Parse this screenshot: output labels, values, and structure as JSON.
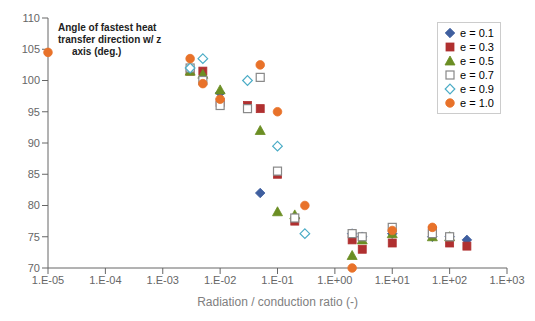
{
  "chart_data": {
    "type": "scatter",
    "title": "Angle of fastest heat\ntransfer direction w/ z\n     axis (deg.)",
    "x_label": "Radiation / conduction ratio (-)",
    "log": "x",
    "xlim": [
      1e-05,
      1000
    ],
    "xticks": [
      {
        "value": 1e-05,
        "label": "1.E-05"
      },
      {
        "value": 0.0001,
        "label": "1.E-04"
      },
      {
        "value": 0.001,
        "label": "1.E-03"
      },
      {
        "value": 0.01,
        "label": "1.E-02"
      },
      {
        "value": 0.1,
        "label": "1.E-01"
      },
      {
        "value": 1,
        "label": "1.E+00"
      },
      {
        "value": 10,
        "label": "1.E+01"
      },
      {
        "value": 100,
        "label": "1.E+02"
      },
      {
        "value": 1000,
        "label": "1.E+03"
      }
    ],
    "ylim": [
      70,
      110
    ],
    "yticks": [
      70,
      75,
      80,
      85,
      90,
      95,
      100,
      105,
      110
    ],
    "grid": false,
    "legend": "upper right",
    "series": [
      {
        "name": "e = 0.1",
        "color": "#3F5F9F",
        "marker": "diamond",
        "x": [
          0.01,
          0.05,
          0.2,
          2.0,
          3.0,
          10.0,
          50.0,
          100.0,
          200.0
        ],
        "values": [
          98.0,
          82.0,
          78.0,
          75.5,
          75.0,
          75.5,
          75.0,
          75.0,
          74.5
        ]
      },
      {
        "name": "e = 0.3",
        "color": "#B03030",
        "marker": "square",
        "x": [
          0.003,
          0.005,
          0.01,
          0.03,
          0.05,
          0.1,
          0.2,
          2.0,
          3.0,
          10.0,
          50.0,
          100.0,
          200.0
        ],
        "values": [
          101.5,
          101.5,
          96.5,
          96.0,
          95.5,
          85.0,
          77.5,
          74.5,
          73.0,
          74.0,
          76.0,
          74.0,
          73.5
        ]
      },
      {
        "name": "e = 0.5",
        "color": "#6B8E23",
        "marker": "triangle",
        "x": [
          0.003,
          0.005,
          0.01,
          0.05,
          0.1,
          0.2,
          2.0,
          3.0,
          10.0,
          50.0,
          100.0
        ],
        "values": [
          101.5,
          101.0,
          98.5,
          92.0,
          79.0,
          78.5,
          72.0,
          74.5,
          75.5,
          75.0,
          75.0
        ]
      },
      {
        "name": "e = 0.7",
        "color": "#888888",
        "marker": "square_open",
        "x": [
          0.003,
          0.005,
          0.01,
          0.03,
          0.05,
          0.1,
          0.2,
          2.0,
          3.0,
          10.0,
          50.0,
          100.0
        ],
        "values": [
          102.0,
          100.0,
          96.0,
          95.5,
          100.5,
          85.5,
          78.0,
          75.5,
          75.0,
          76.5,
          75.5,
          75.0
        ]
      },
      {
        "name": "e = 0.9",
        "color": "#4BACC6",
        "marker": "diamond_open",
        "x": [
          0.003,
          0.005,
          0.03,
          0.1,
          0.3
        ],
        "values": [
          102.0,
          103.5,
          100.0,
          89.5,
          75.5
        ]
      },
      {
        "name": "e = 1.0",
        "color": "#E8722A",
        "marker": "circle",
        "x": [
          1e-05,
          0.003,
          0.005,
          0.01,
          0.05,
          0.1,
          0.3,
          2.0,
          10.0,
          50.0
        ],
        "values": [
          104.5,
          103.5,
          99.5,
          97.0,
          102.5,
          95.0,
          80.0,
          70.0,
          76.0,
          76.5
        ]
      }
    ]
  }
}
